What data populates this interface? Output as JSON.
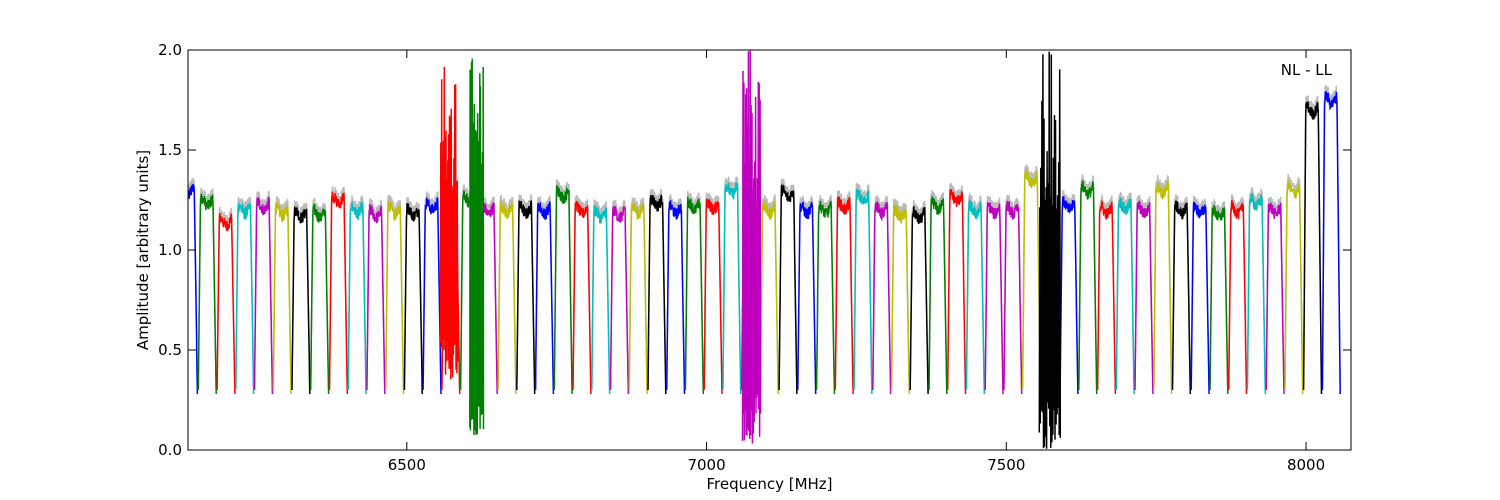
{
  "chart_data": {
    "type": "line",
    "xlabel": "Frequency [MHz]",
    "ylabel": "Amplitude [arbitrary units]",
    "annotation": "NL - LL",
    "xlim": [
      6135,
      8075
    ],
    "ylim": [
      0.0,
      2.0
    ],
    "xticks": [
      6500,
      7000,
      7500,
      8000
    ],
    "yticks": [
      0.0,
      0.5,
      1.0,
      1.5,
      2.0
    ],
    "xtick_labels": [
      "6500",
      "7000",
      "7500",
      "8000"
    ],
    "ytick_labels": [
      "0.0",
      "0.5",
      "1.0",
      "1.5",
      "2.0"
    ],
    "grid": false,
    "color_cycle": [
      "#0000ff",
      "#008000",
      "#ff0000",
      "#00bfbf",
      "#bf00bf",
      "#bfbf00",
      "#000000"
    ],
    "background_series_color": "#bbbbbb",
    "subband_width_mhz": 31.25,
    "subband_start_mhz": 6121,
    "series": [
      {
        "start": 6121,
        "levels": [
          0.1,
          0.32,
          0.75,
          1.0,
          1.3,
          1.4,
          1.3
        ],
        "color": "#0000ff"
      },
      {
        "start": 6152.25,
        "level": 1.24,
        "color": "#008000"
      },
      {
        "start": 6183.5,
        "level": 1.14,
        "color": "#ff0000"
      },
      {
        "start": 6214.75,
        "level": 1.2,
        "color": "#00bfbf"
      },
      {
        "start": 6246,
        "level": 1.22,
        "color": "#bf00bf"
      },
      {
        "start": 6277.25,
        "level": 1.19,
        "color": "#bfbf00"
      },
      {
        "start": 6308.5,
        "level": 1.18,
        "color": "#000000"
      },
      {
        "start": 6339.75,
        "level": 1.18,
        "color": "#008000"
      },
      {
        "start": 6371,
        "level": 1.25,
        "color": "#ff0000"
      },
      {
        "start": 6402.25,
        "level": 1.2,
        "color": "#00bfbf"
      },
      {
        "start": 6433.5,
        "level": 1.18,
        "color": "#bf00bf"
      },
      {
        "start": 6464.75,
        "level": 1.2,
        "color": "#bfbf00"
      },
      {
        "start": 6496,
        "level": 1.19,
        "color": "#000000"
      },
      {
        "start": 6527.25,
        "level": 1.22,
        "color": "#0000ff"
      },
      {
        "start": 6558.5,
        "level": 1.2,
        "color": "#ff0000"
      },
      {
        "start": 6589.75,
        "level": 1.25,
        "color": "#008000"
      },
      {
        "start": 6621,
        "level": 1.2,
        "color": "#bf00bf"
      },
      {
        "start": 6652.25,
        "level": 1.2,
        "color": "#bfbf00"
      },
      {
        "start": 6683.5,
        "level": 1.2,
        "color": "#000000"
      },
      {
        "start": 6714.75,
        "level": 1.2,
        "color": "#0000ff"
      },
      {
        "start": 6746,
        "level": 1.28,
        "color": "#008000"
      },
      {
        "start": 6777.25,
        "level": 1.2,
        "color": "#ff0000"
      },
      {
        "start": 6808.5,
        "level": 1.18,
        "color": "#00bfbf"
      },
      {
        "start": 6839.75,
        "level": 1.18,
        "color": "#bf00bf"
      },
      {
        "start": 6871,
        "level": 1.2,
        "color": "#bfbf00"
      },
      {
        "start": 6902.25,
        "level": 1.24,
        "color": "#000000"
      },
      {
        "start": 6933.5,
        "level": 1.2,
        "color": "#0000ff"
      },
      {
        "start": 6964.75,
        "level": 1.22,
        "color": "#008000"
      },
      {
        "start": 6996,
        "level": 1.22,
        "color": "#ff0000"
      },
      {
        "start": 7027.25,
        "level": 1.3,
        "color": "#00bfbf"
      },
      {
        "start": 7058.5,
        "level": 1.2,
        "color": "#bf00bf"
      },
      {
        "start": 7089.75,
        "level": 1.2,
        "color": "#bfbf00"
      },
      {
        "start": 7121,
        "level": 1.28,
        "color": "#000000"
      },
      {
        "start": 7152.25,
        "level": 1.2,
        "color": "#0000ff"
      },
      {
        "start": 7183.5,
        "level": 1.2,
        "color": "#008000"
      },
      {
        "start": 7214.75,
        "level": 1.22,
        "color": "#ff0000"
      },
      {
        "start": 7246,
        "level": 1.26,
        "color": "#00bfbf"
      },
      {
        "start": 7277.25,
        "level": 1.2,
        "color": "#bf00bf"
      },
      {
        "start": 7308.5,
        "level": 1.18,
        "color": "#bfbf00"
      },
      {
        "start": 7339.75,
        "level": 1.17,
        "color": "#000000"
      },
      {
        "start": 7371,
        "level": 1.22,
        "color": "#008000"
      },
      {
        "start": 7402.25,
        "level": 1.26,
        "color": "#ff0000"
      },
      {
        "start": 7433.5,
        "level": 1.2,
        "color": "#00bfbf"
      },
      {
        "start": 7464.75,
        "level": 1.2,
        "color": "#bf00bf"
      },
      {
        "start": 7496,
        "level": 1.2,
        "color": "#bf00bf"
      },
      {
        "start": 7527.25,
        "level": 1.35,
        "color": "#bfbf00"
      },
      {
        "start": 7558.5,
        "level": 0.9,
        "color": "#000000"
      },
      {
        "start": 7589.75,
        "level": 1.22,
        "color": "#0000ff"
      },
      {
        "start": 7621,
        "level": 1.3,
        "color": "#008000"
      },
      {
        "start": 7652.25,
        "level": 1.2,
        "color": "#ff0000"
      },
      {
        "start": 7683.5,
        "level": 1.22,
        "color": "#00bfbf"
      },
      {
        "start": 7714.75,
        "level": 1.2,
        "color": "#bf00bf"
      },
      {
        "start": 7746,
        "level": 1.3,
        "color": "#bfbf00"
      },
      {
        "start": 7777.25,
        "level": 1.2,
        "color": "#000000"
      },
      {
        "start": 7808.5,
        "level": 1.2,
        "color": "#0000ff"
      },
      {
        "start": 7839.75,
        "level": 1.18,
        "color": "#008000"
      },
      {
        "start": 7871,
        "level": 1.2,
        "color": "#ff0000"
      },
      {
        "start": 7902.25,
        "level": 1.24,
        "color": "#00bfbf"
      },
      {
        "start": 7933.5,
        "level": 1.2,
        "color": "#bf00bf"
      },
      {
        "start": 7964.75,
        "level": 1.3,
        "color": "#bfbf00"
      },
      {
        "start": 7996,
        "level": 1.7,
        "color": "#000000"
      },
      {
        "start": 8027.25,
        "level": 1.75,
        "color": "#0000ff"
      }
    ],
    "spikes": [
      {
        "series_index": 14,
        "x_range": [
          6556,
          6585
        ],
        "y_range": [
          0.35,
          2.0
        ],
        "color": "#ff0000"
      },
      {
        "series_index": 15,
        "x_range": [
          6605,
          6628
        ],
        "y_range": [
          0.05,
          2.0
        ],
        "color": "#008000"
      },
      {
        "series_index": 30,
        "x_range": [
          7060,
          7090
        ],
        "y_range": [
          0.03,
          2.0
        ],
        "color": "#bf00bf"
      },
      {
        "series_index": 46,
        "x_range": [
          7555,
          7590
        ],
        "y_range": [
          0.0,
          2.0
        ],
        "color": "#000000"
      }
    ]
  }
}
